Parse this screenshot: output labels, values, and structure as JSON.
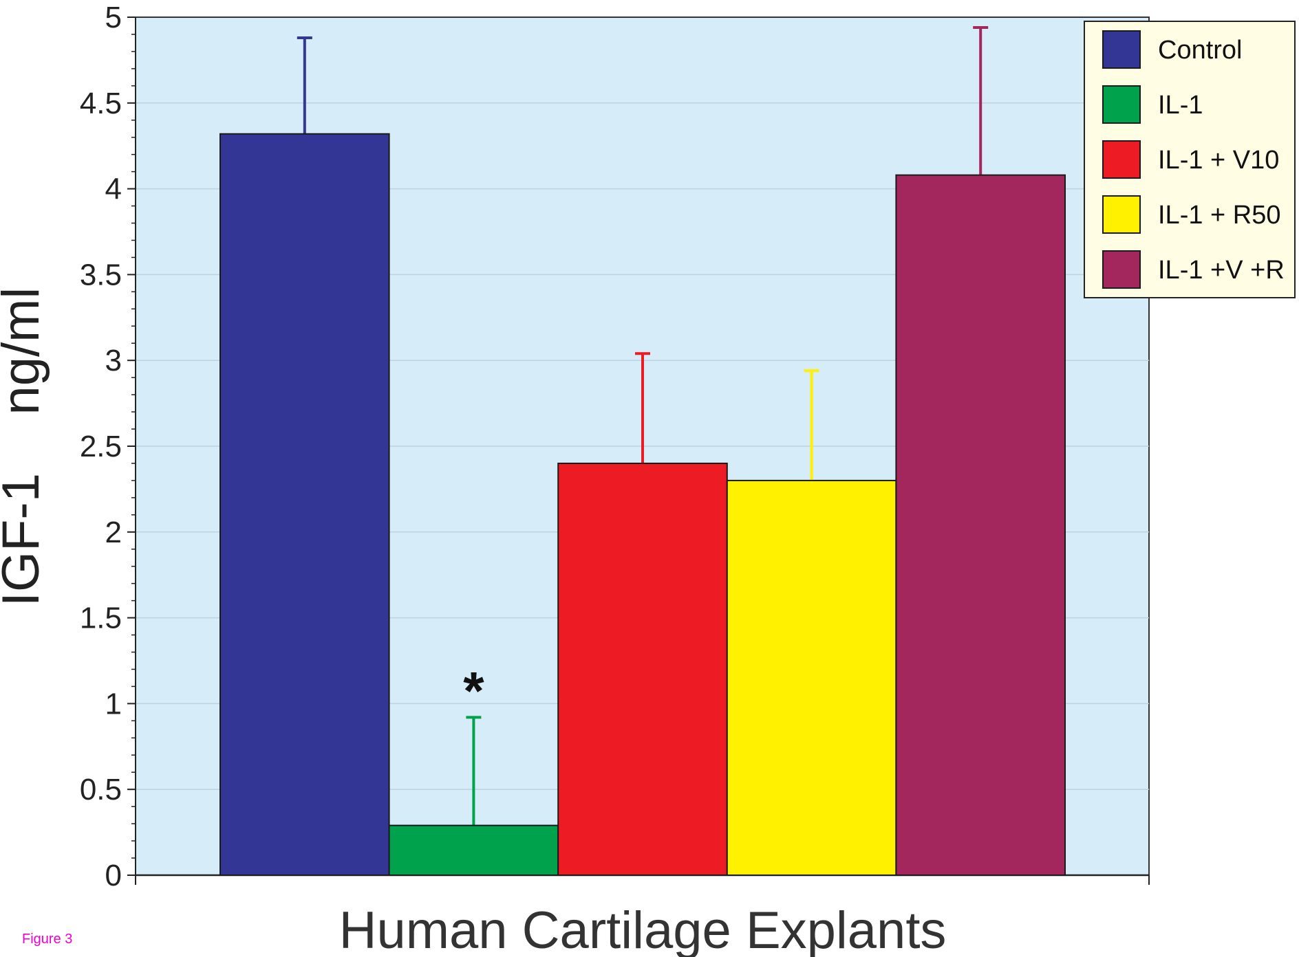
{
  "chart_data": {
    "type": "bar",
    "title": "",
    "xlabel": "Human Cartilage Explants",
    "ylabel": "IGF-1    ng/ml",
    "ylim": [
      0,
      5
    ],
    "yticks": [
      "0",
      "0.5",
      "1",
      "1.5",
      "2",
      "2.5",
      "3",
      "3.5",
      "4",
      "4.5",
      "5"
    ],
    "grid": true,
    "legend_position": "top-right",
    "series": [
      {
        "name": "Control",
        "value": 4.32,
        "error": 0.56,
        "color": "#333694"
      },
      {
        "name": "IL-1",
        "value": 0.29,
        "error": 0.63,
        "color": "#00a24b",
        "annotation": "*"
      },
      {
        "name": "IL-1 + V10",
        "value": 2.4,
        "error": 0.64,
        "color": "#ed1c24"
      },
      {
        "name": "IL-1 + R50",
        "value": 2.3,
        "error": 0.64,
        "color": "#fff100"
      },
      {
        "name": "IL-1 +V +R",
        "value": 4.08,
        "error": 0.86,
        "color": "#a3265d"
      }
    ],
    "plot_background": "#d6ecf8",
    "legend_background": "#fffde3"
  },
  "figure_label": "Figure 3"
}
